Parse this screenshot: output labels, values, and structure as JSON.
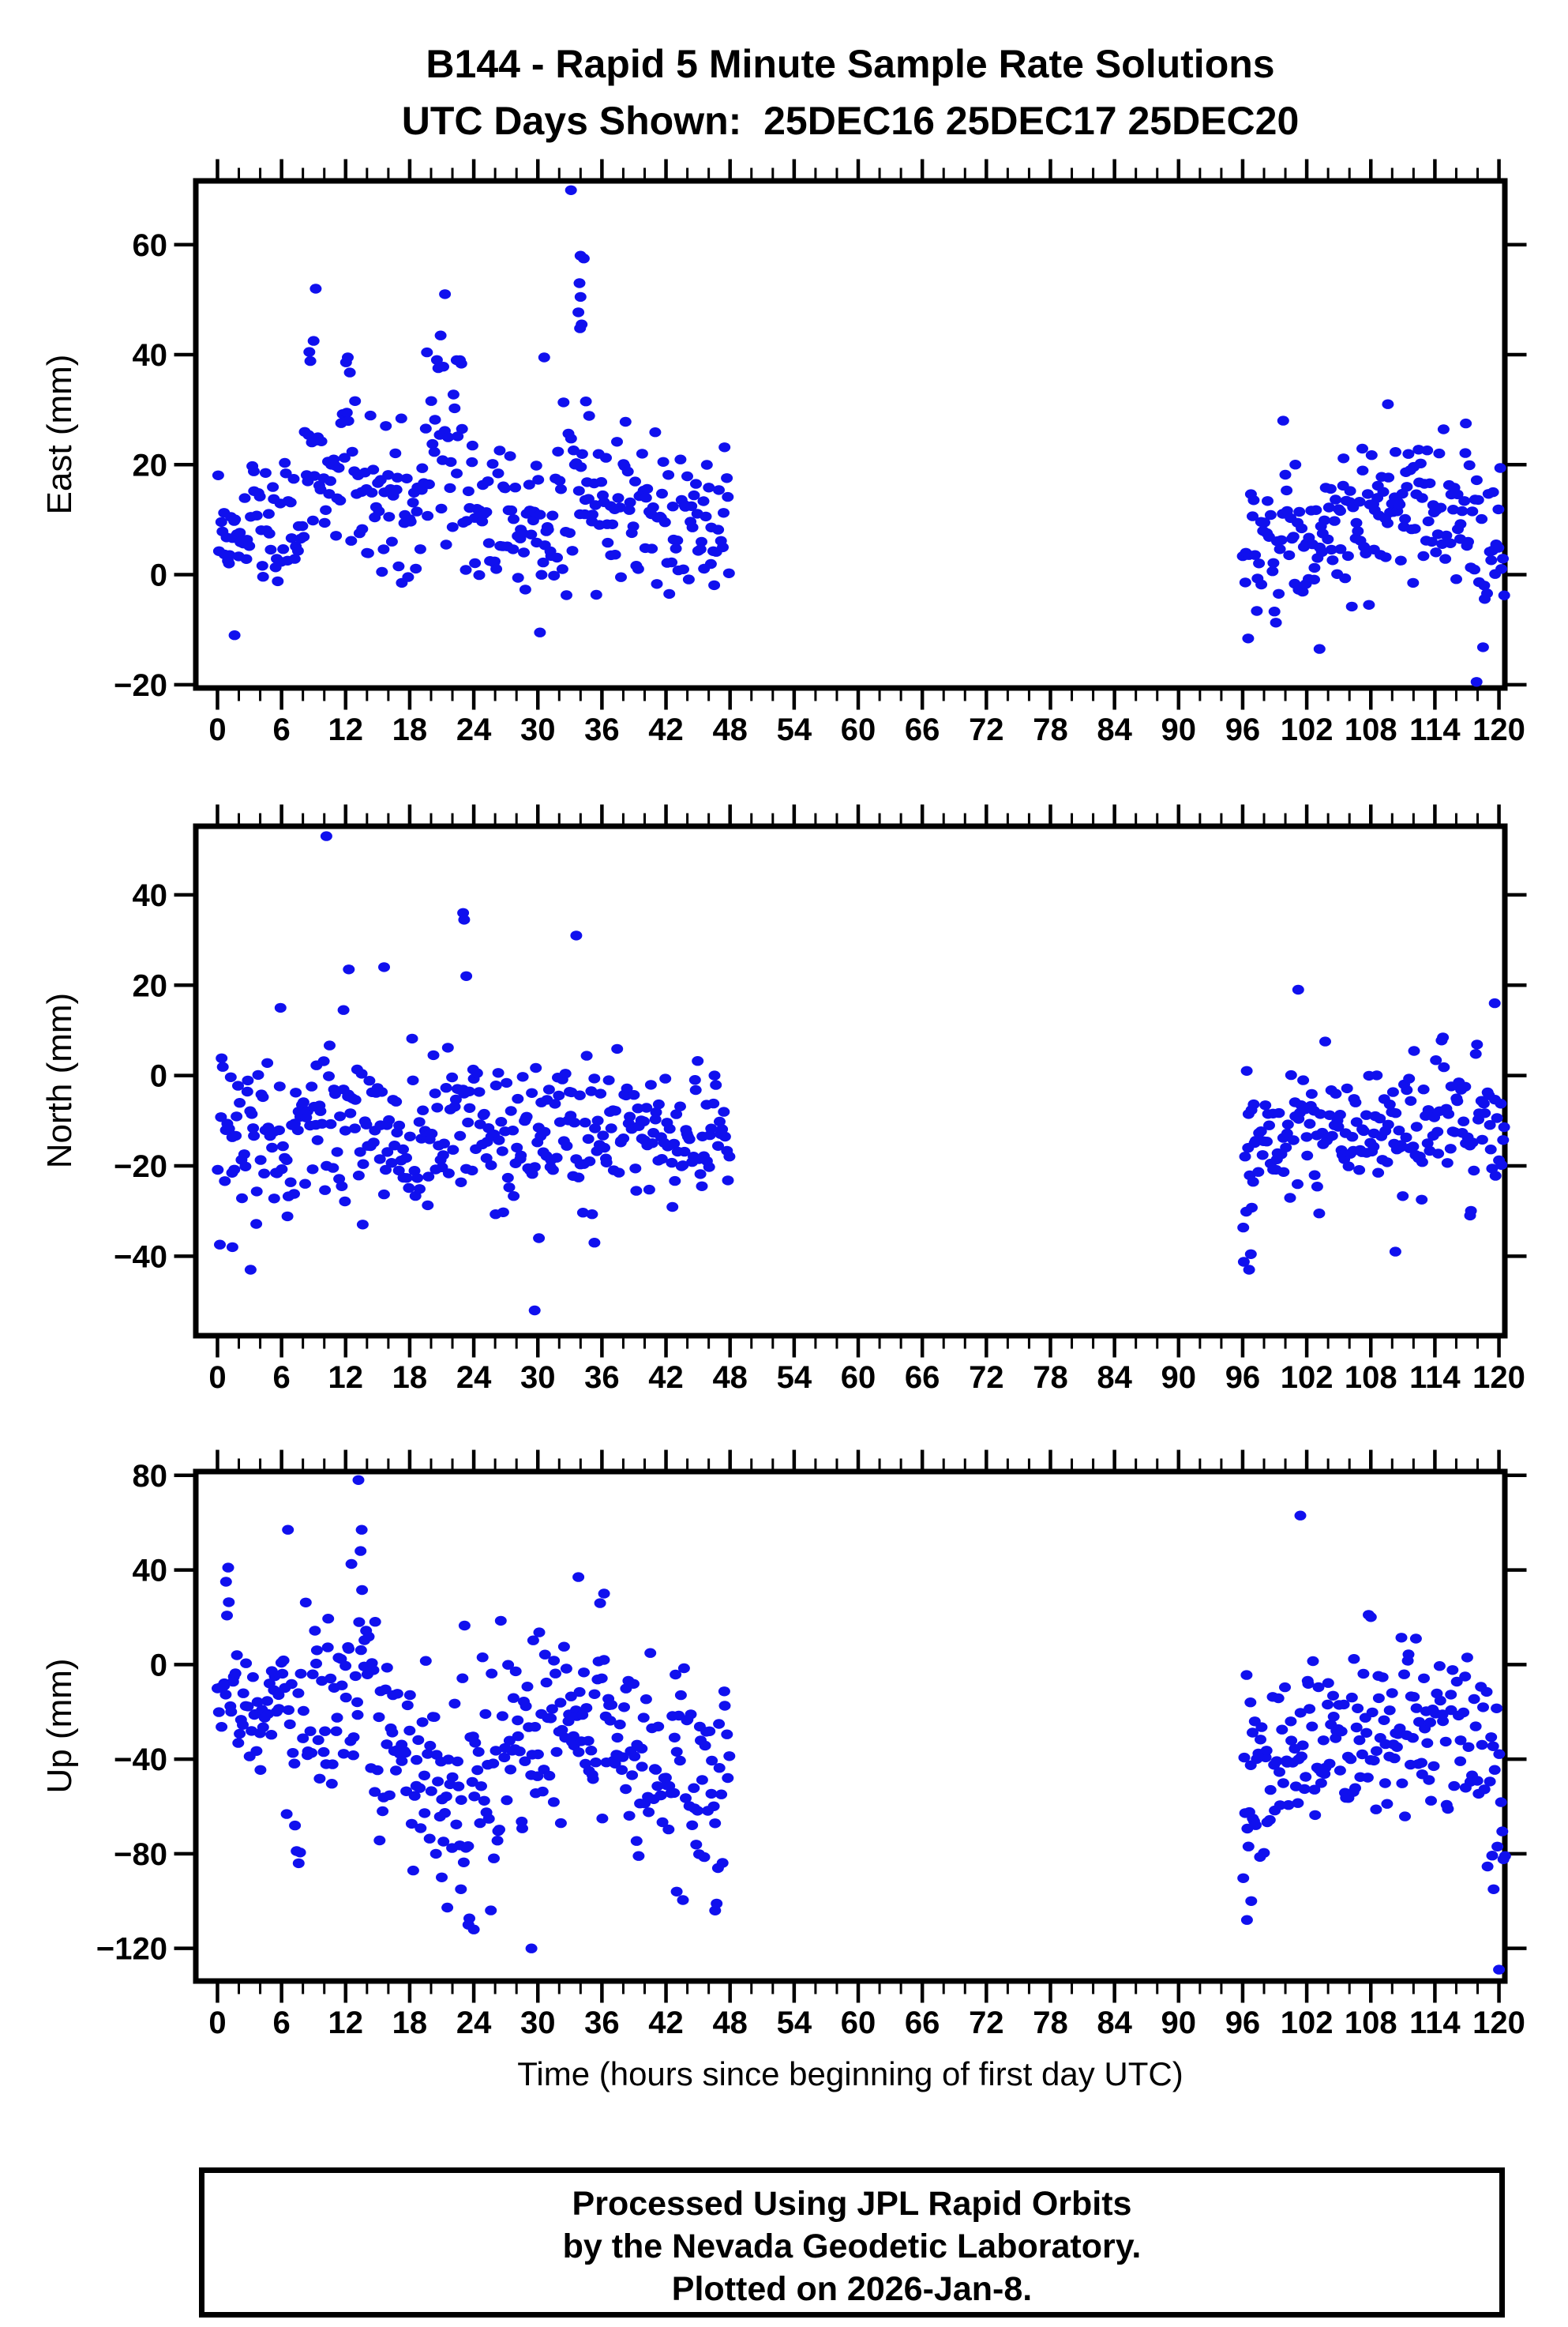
{
  "chart_data": {
    "type": "scatter",
    "title": "B144 - Rapid 5 Minute Sample Rate Solutions",
    "subtitle": "UTC Days Shown:  25DEC16 25DEC17 25DEC20",
    "xlabel": "Time (hours since beginning of first day UTC)",
    "point_color": "#1010ee",
    "frame_color": "#000000",
    "xlim": [
      -2.03,
      120.55
    ],
    "x_major_step": 6,
    "x_minor_step": 2,
    "xticks": [
      0,
      6,
      12,
      18,
      24,
      30,
      36,
      42,
      48,
      54,
      60,
      66,
      72,
      78,
      84,
      90,
      96,
      102,
      108,
      114,
      120
    ],
    "time_gap_hours": [
      48,
      96
    ],
    "panels": [
      {
        "name": "east",
        "ylabel": "East (mm)",
        "ylim": [
          -20.6,
          71.6
        ],
        "yticks": [
          -20,
          0,
          20,
          40,
          60
        ],
        "clusters": [
          [
            0,
            3,
            24,
            7,
            5,
            -12,
            26
          ],
          [
            3,
            8,
            36,
            10,
            6,
            -6,
            30
          ],
          [
            8,
            13,
            38,
            19,
            9,
            -2,
            43
          ],
          [
            13,
            19,
            44,
            13,
            7,
            -4,
            36
          ],
          [
            19,
            23,
            30,
            21,
            9,
            2,
            41
          ],
          [
            23,
            28,
            36,
            10,
            7,
            -9,
            28
          ],
          [
            28,
            32,
            30,
            7,
            7,
            -11,
            24
          ],
          [
            32,
            36,
            30,
            14,
            8,
            -4,
            32
          ],
          [
            36,
            42,
            44,
            12,
            8,
            -9,
            31
          ],
          [
            42,
            48,
            44,
            9,
            8,
            -9,
            30
          ],
          [
            96,
            100,
            30,
            6,
            8,
            -13,
            26
          ],
          [
            100,
            108,
            62,
            9,
            7,
            -14,
            29
          ],
          [
            108,
            114,
            48,
            12,
            6,
            -3,
            27
          ],
          [
            114,
            118,
            30,
            10,
            7,
            -6,
            28
          ],
          [
            118,
            120.6,
            20,
            2,
            8,
            -20,
            22
          ]
        ],
        "outliers": [
          [
            33.1,
            69.9
          ],
          [
            34.0,
            58
          ],
          [
            34.3,
            57.5
          ],
          [
            33.9,
            53
          ],
          [
            34.0,
            50.5
          ],
          [
            33.8,
            47.7
          ],
          [
            34.1,
            45.5
          ],
          [
            33.95,
            44.8
          ],
          [
            34.5,
            31.5
          ],
          [
            9.2,
            52
          ],
          [
            21.3,
            51
          ],
          [
            20.9,
            43.5
          ],
          [
            9.0,
            42.5
          ],
          [
            8.6,
            40.5
          ],
          [
            12.2,
            39.5
          ],
          [
            22.4,
            39
          ],
          [
            30.6,
            39.5
          ],
          [
            1.6,
            -11
          ],
          [
            30.2,
            -10.5
          ],
          [
            117.9,
            -19.5
          ],
          [
            103.2,
            -13.5
          ],
          [
            109.6,
            31
          ],
          [
            116.9,
            27.5
          ],
          [
            99.8,
            28
          ]
        ]
      },
      {
        "name": "north",
        "ylabel": "North (mm)",
        "ylim": [
          -57.6,
          55.2
        ],
        "yticks": [
          -40,
          -20,
          0,
          20,
          40
        ],
        "clusters": [
          [
            0,
            2,
            16,
            -13,
            10,
            -38,
            4
          ],
          [
            2,
            8,
            44,
            -14,
            8,
            -35,
            6
          ],
          [
            8,
            14,
            44,
            -10,
            8,
            -30,
            12
          ],
          [
            14,
            20,
            44,
            -12,
            7,
            -30,
            9
          ],
          [
            20,
            24,
            30,
            -10,
            9,
            -28,
            12
          ],
          [
            24,
            30,
            44,
            -14,
            8,
            -34,
            6
          ],
          [
            30,
            36,
            44,
            -13,
            8,
            -33,
            7
          ],
          [
            36,
            42,
            44,
            -12,
            7,
            -30,
            6
          ],
          [
            42,
            48,
            44,
            -13,
            7,
            -32,
            5
          ],
          [
            96,
            97.2,
            14,
            -20,
            12,
            -43,
            2
          ],
          [
            97.2,
            106,
            64,
            -12,
            7,
            -32,
            8
          ],
          [
            106,
            114,
            60,
            -13,
            7,
            -33,
            6
          ],
          [
            114,
            120.6,
            48,
            -10,
            8,
            -30,
            10
          ]
        ],
        "outliers": [
          [
            10.2,
            53
          ],
          [
            23.0,
            36
          ],
          [
            23.1,
            34.5
          ],
          [
            23.3,
            22
          ],
          [
            33.6,
            31
          ],
          [
            12.3,
            23.5
          ],
          [
            15.6,
            24
          ],
          [
            5.9,
            15
          ],
          [
            11.8,
            14.5
          ],
          [
            3.1,
            -43
          ],
          [
            1.4,
            -38
          ],
          [
            29.7,
            -52
          ],
          [
            30.1,
            -36
          ],
          [
            13.6,
            -33
          ],
          [
            35.3,
            -37
          ],
          [
            101.2,
            19
          ],
          [
            119.6,
            16
          ],
          [
            96.6,
            -43
          ],
          [
            110.3,
            -39
          ],
          [
            117.3,
            -31
          ]
        ]
      },
      {
        "name": "up",
        "ylabel": "Up (mm)",
        "ylim": [
          -133.8,
          81.6
        ],
        "yticks": [
          -120,
          -80,
          -40,
          0,
          40,
          80
        ],
        "clusters": [
          [
            0,
            2,
            16,
            0,
            18,
            -40,
            41
          ],
          [
            2,
            6,
            30,
            -18,
            13,
            -50,
            20
          ],
          [
            6,
            9,
            22,
            -20,
            25,
            -84,
            30
          ],
          [
            9,
            12,
            22,
            -15,
            20,
            -60,
            25
          ],
          [
            12,
            15,
            24,
            0,
            28,
            -55,
            58
          ],
          [
            15,
            18,
            24,
            -30,
            20,
            -75,
            20
          ],
          [
            18,
            21,
            24,
            -40,
            22,
            -90,
            15
          ],
          [
            21,
            24,
            24,
            -52,
            28,
            -110,
            35
          ],
          [
            24,
            27,
            24,
            -45,
            25,
            -105,
            20
          ],
          [
            27,
            30,
            24,
            -40,
            28,
            -120,
            25
          ],
          [
            30,
            33,
            24,
            -30,
            20,
            -80,
            30
          ],
          [
            33,
            36,
            24,
            -20,
            20,
            -65,
            37
          ],
          [
            36,
            39,
            24,
            -25,
            18,
            -70,
            30
          ],
          [
            39,
            42,
            24,
            -40,
            22,
            -90,
            18
          ],
          [
            42,
            45,
            24,
            -45,
            25,
            -100,
            15
          ],
          [
            45,
            48,
            24,
            -45,
            25,
            -104,
            25
          ],
          [
            96,
            97.5,
            16,
            -55,
            30,
            -108,
            0
          ],
          [
            97.5,
            102,
            34,
            -35,
            20,
            -85,
            20
          ],
          [
            102,
            108,
            48,
            -35,
            20,
            -85,
            25
          ],
          [
            108,
            114,
            48,
            -30,
            18,
            -80,
            22
          ],
          [
            114,
            118.5,
            30,
            -35,
            20,
            -85,
            18
          ],
          [
            118.5,
            120.6,
            16,
            -55,
            28,
            -95,
            5
          ]
        ],
        "outliers": [
          [
            13.2,
            78
          ],
          [
            6.6,
            57
          ],
          [
            13.5,
            57
          ],
          [
            13.4,
            48
          ],
          [
            1.0,
            41
          ],
          [
            0.8,
            35
          ],
          [
            33.8,
            37
          ],
          [
            36.2,
            30
          ],
          [
            101.4,
            63
          ],
          [
            23.5,
            -110
          ],
          [
            24.0,
            -112
          ],
          [
            29.4,
            -120
          ],
          [
            120.0,
            -129
          ],
          [
            96.4,
            -108
          ],
          [
            96.8,
            -100
          ],
          [
            46.6,
            -104
          ],
          [
            43.0,
            -96
          ],
          [
            21.0,
            -90
          ],
          [
            7.6,
            -84
          ],
          [
            22.8,
            -95
          ],
          [
            119.5,
            -95
          ]
        ]
      }
    ],
    "footer_lines": [
      "Processed Using JPL Rapid Orbits",
      "by the Nevada Geodetic Laboratory.",
      "Plotted on 2026-Jan-8."
    ]
  }
}
